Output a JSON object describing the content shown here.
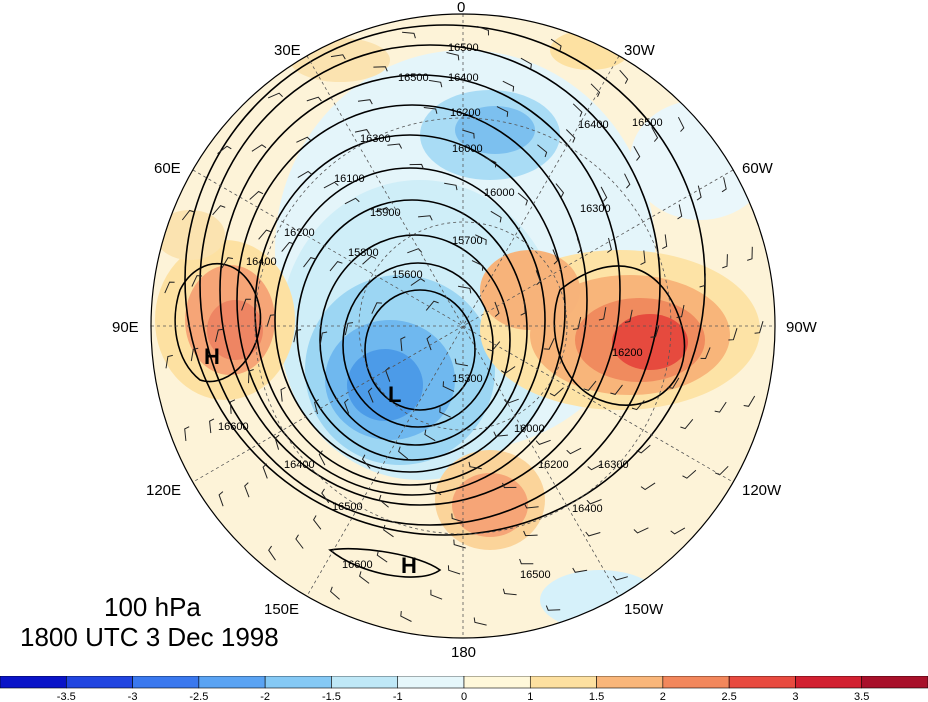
{
  "map": {
    "longitude_labels": [
      {
        "text": "0"
      },
      {
        "text": "30W"
      },
      {
        "text": "60W"
      },
      {
        "text": "90W"
      },
      {
        "text": "120W"
      },
      {
        "text": "150W"
      },
      {
        "text": "180"
      },
      {
        "text": "150E"
      },
      {
        "text": "120E"
      },
      {
        "text": "90E"
      },
      {
        "text": "60E"
      },
      {
        "text": "30E"
      }
    ],
    "contour_labels": [
      "16500",
      "16400",
      "16200",
      "16000",
      "16500",
      "16400",
      "16300",
      "16200",
      "16100",
      "16000",
      "15900",
      "15800",
      "15700",
      "15600",
      "15300",
      "16300",
      "16400",
      "16500",
      "16600",
      "16000",
      "16200",
      "16300",
      "16400",
      "16500",
      "16600",
      "16500",
      "16400",
      "16200"
    ],
    "centers": [
      {
        "label": "H"
      },
      {
        "label": "L"
      },
      {
        "label": "H"
      }
    ]
  },
  "caption": {
    "level": "100 hPa",
    "time": "1800 UTC 3 Dec 1998"
  },
  "colorbar": {
    "colors": [
      "#0a14c8",
      "#2145e0",
      "#3a78ee",
      "#5aa3f3",
      "#85c9f5",
      "#bfe8f7",
      "#e6f7fb",
      "#fff8da",
      "#fde0a0",
      "#f9b67a",
      "#f2875c",
      "#e84a3f",
      "#d22030",
      "#a8102a"
    ],
    "ticks": [
      "-3.5",
      "-3",
      "-2.5",
      "-2",
      "-1.5",
      "-1",
      "0",
      "1",
      "1.5",
      "2",
      "2.5",
      "3",
      "3.5"
    ]
  }
}
